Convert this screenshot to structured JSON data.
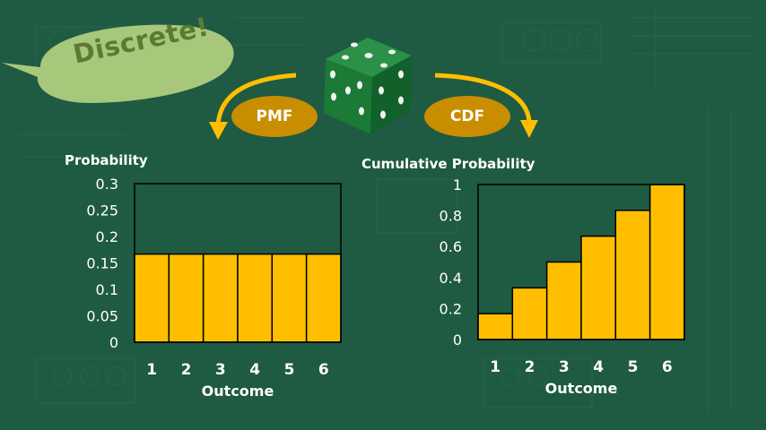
{
  "bubble": {
    "text": "Discrete!"
  },
  "arrows": {
    "left_label": "PMF",
    "right_label": "CDF"
  },
  "colors": {
    "background": "#1f5a43",
    "bar": "#ffbf00",
    "oval": "#c98d00",
    "bubble": "#a7c77a",
    "die": "#1e7a3a"
  },
  "chart_data": [
    {
      "type": "bar",
      "title": "",
      "ylabel": "Probability",
      "xlabel": "Outcome",
      "categories": [
        "1",
        "2",
        "3",
        "4",
        "5",
        "6"
      ],
      "values": [
        0.1667,
        0.1667,
        0.1667,
        0.1667,
        0.1667,
        0.1667
      ],
      "ylim": [
        0,
        0.3
      ],
      "yticks": [
        "0",
        "0.05",
        "0.1",
        "0.15",
        "0.2",
        "0.25",
        "0.3"
      ],
      "grid": false
    },
    {
      "type": "bar",
      "title": "",
      "ylabel": "Cumulative Probability",
      "xlabel": "Outcome",
      "categories": [
        "1",
        "2",
        "3",
        "4",
        "5",
        "6"
      ],
      "values": [
        0.1667,
        0.3333,
        0.5,
        0.6667,
        0.8333,
        1.0
      ],
      "ylim": [
        0,
        1
      ],
      "yticks": [
        "0",
        "0.2",
        "0.4",
        "0.6",
        "0.8",
        "1"
      ],
      "grid": false
    }
  ]
}
